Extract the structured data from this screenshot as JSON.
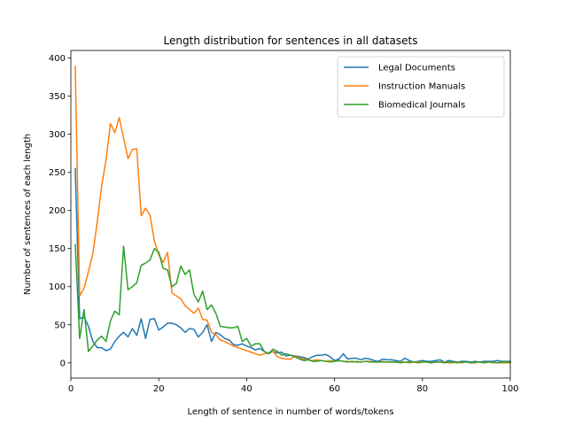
{
  "chart_data": {
    "type": "line",
    "title": "Length distribution for sentences in all datasets",
    "xlabel": "Length of sentence in number of words/tokens",
    "ylabel": "Number of sentences of each length",
    "xlim": [
      0,
      100
    ],
    "ylim": [
      -20,
      410
    ],
    "xticks": [
      0,
      20,
      40,
      60,
      80,
      100
    ],
    "yticks": [
      0,
      50,
      100,
      150,
      200,
      250,
      300,
      350,
      400
    ],
    "grid": false,
    "legend_position": "top-right",
    "series": [
      {
        "name": "Legal Documents",
        "color": "#1f77b4",
        "x": [
          1,
          2,
          3,
          4,
          5,
          6,
          7,
          8,
          9,
          10,
          11,
          12,
          13,
          14,
          15,
          16,
          17,
          18,
          19,
          20,
          21,
          22,
          23,
          24,
          25,
          26,
          27,
          28,
          29,
          30,
          31,
          32,
          33,
          34,
          35,
          36,
          37,
          38,
          39,
          40,
          41,
          42,
          43,
          44,
          45,
          46,
          47,
          48,
          49,
          50,
          51,
          52,
          53,
          54,
          55,
          56,
          57,
          58,
          59,
          60,
          61,
          62,
          63,
          64,
          65,
          66,
          67,
          68,
          69,
          70,
          71,
          72,
          73,
          74,
          75,
          76,
          77,
          78,
          79,
          80,
          81,
          82,
          83,
          84,
          85,
          86,
          87,
          88,
          89,
          90,
          91,
          92,
          93,
          94,
          95,
          96,
          97,
          98,
          99,
          100
        ],
        "values": [
          255,
          58,
          60,
          48,
          28,
          20,
          20,
          16,
          18,
          28,
          35,
          40,
          34,
          45,
          36,
          58,
          32,
          57,
          58,
          43,
          47,
          52,
          52,
          50,
          46,
          40,
          45,
          44,
          34,
          40,
          50,
          28,
          40,
          37,
          32,
          30,
          24,
          23,
          25,
          22,
          20,
          17,
          19,
          15,
          12,
          15,
          13,
          14,
          9,
          10,
          9,
          8,
          7,
          5,
          8,
          10,
          10,
          11,
          8,
          3,
          5,
          12,
          5,
          6,
          6,
          4,
          6,
          5,
          3,
          2,
          5,
          4,
          4,
          3,
          2,
          6,
          3,
          1,
          2,
          3,
          2,
          2,
          3,
          4,
          1,
          3,
          2,
          1,
          2,
          2,
          1,
          2,
          1,
          2,
          2,
          2,
          3,
          2,
          2,
          2
        ]
      },
      {
        "name": "Instruction Manuals",
        "color": "#ff7f0e",
        "x": [
          1,
          2,
          3,
          4,
          5,
          6,
          7,
          8,
          9,
          10,
          11,
          12,
          13,
          14,
          15,
          16,
          17,
          18,
          19,
          20,
          21,
          22,
          23,
          24,
          25,
          26,
          27,
          28,
          29,
          30,
          31,
          32,
          33,
          34,
          35,
          36,
          37,
          38,
          39,
          40,
          41,
          42,
          43,
          44,
          45,
          46,
          47,
          48,
          49,
          50,
          51,
          52,
          53,
          54,
          55,
          56,
          57,
          58,
          59,
          60,
          61,
          62,
          63,
          64,
          65,
          66,
          67,
          68,
          69,
          70,
          71,
          72,
          73,
          74,
          75,
          76,
          77,
          78,
          79,
          80,
          81,
          82,
          83,
          84,
          85,
          86,
          87,
          88,
          89,
          90,
          91,
          92,
          93,
          94,
          95,
          96,
          97,
          98,
          99,
          100
        ],
        "values": [
          389,
          88,
          98,
          120,
          143,
          185,
          232,
          266,
          314,
          302,
          322,
          295,
          268,
          280,
          281,
          193,
          203,
          194,
          160,
          142,
          132,
          145,
          92,
          88,
          84,
          75,
          70,
          65,
          72,
          57,
          56,
          40,
          37,
          30,
          28,
          25,
          22,
          20,
          18,
          16,
          14,
          12,
          10,
          12,
          13,
          15,
          8,
          6,
          5,
          5,
          9,
          6,
          5,
          4,
          3,
          4,
          3,
          2,
          3,
          2,
          3,
          2,
          2,
          1,
          2,
          1,
          2,
          2,
          1,
          1,
          2,
          1,
          1,
          1,
          1,
          1,
          0,
          1,
          1,
          1,
          1,
          0,
          1,
          1,
          1,
          0,
          0,
          1,
          0,
          1,
          0,
          0,
          1,
          0,
          1,
          0,
          0,
          0,
          0,
          0
        ]
      },
      {
        "name": "Biomedical Journals",
        "color": "#2ca02c",
        "x": [
          1,
          2,
          3,
          4,
          5,
          6,
          7,
          8,
          9,
          10,
          11,
          12,
          13,
          14,
          15,
          16,
          17,
          18,
          19,
          20,
          21,
          22,
          23,
          24,
          25,
          26,
          27,
          28,
          29,
          30,
          31,
          32,
          33,
          34,
          35,
          36,
          37,
          38,
          39,
          40,
          41,
          42,
          43,
          44,
          45,
          46,
          47,
          48,
          49,
          50,
          51,
          52,
          53,
          54,
          55,
          56,
          57,
          58,
          59,
          60,
          61,
          62,
          63,
          64,
          65,
          66,
          67,
          68,
          69,
          70,
          71,
          72,
          73,
          74,
          75,
          76,
          77,
          78,
          79,
          80,
          81,
          82,
          83,
          84,
          85,
          86,
          87,
          88,
          89,
          90,
          91,
          92,
          93,
          94,
          95,
          96,
          97,
          98,
          99,
          100
        ],
        "values": [
          155,
          32,
          70,
          15,
          22,
          30,
          35,
          28,
          55,
          68,
          63,
          153,
          96,
          100,
          105,
          128,
          131,
          135,
          150,
          145,
          124,
          122,
          100,
          104,
          127,
          116,
          122,
          90,
          80,
          94,
          70,
          76,
          65,
          48,
          47,
          46,
          46,
          48,
          28,
          32,
          22,
          25,
          25,
          15,
          12,
          18,
          15,
          10,
          12,
          10,
          8,
          5,
          3,
          4,
          2,
          2,
          3,
          2,
          1,
          2,
          3,
          2,
          1,
          2,
          1,
          1,
          2,
          1,
          1,
          1,
          1,
          1,
          1,
          1,
          0,
          1,
          1,
          1,
          0,
          1,
          1,
          0,
          1,
          1,
          0,
          1,
          1,
          0,
          1,
          1,
          0,
          1,
          1,
          0,
          1,
          1,
          0,
          1,
          1,
          1
        ]
      }
    ]
  }
}
